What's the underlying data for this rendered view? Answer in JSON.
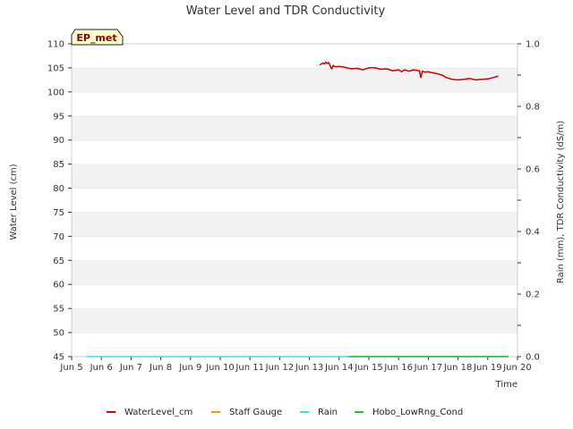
{
  "chart_data": {
    "type": "line",
    "title": "Water Level and TDR Conductivity",
    "site_label": "EP_met",
    "xlabel": "Time",
    "ylabel": "Water Level (cm)",
    "y2label": "Rain (mm), TDR Conductivity (dS/m)",
    "xlim": [
      5,
      20
    ],
    "ylim": [
      45,
      110
    ],
    "y2lim": [
      0.0,
      1.0
    ],
    "x_ticks": [
      5,
      6,
      7,
      8,
      9,
      10,
      11,
      12,
      13,
      14,
      15,
      16,
      17,
      18,
      19,
      20
    ],
    "x_tick_labels": [
      "Jun 5",
      "Jun 6",
      "Jun 7",
      "Jun 8",
      "Jun 9",
      "Jun 10",
      "Jun 11",
      "Jun 12",
      "Jun 13",
      "Jun 14",
      "Jun 15",
      "Jun 16",
      "Jun 17",
      "Jun 18",
      "Jun 19",
      "Jun 20"
    ],
    "y_ticks": [
      45,
      50,
      55,
      60,
      65,
      70,
      75,
      80,
      85,
      90,
      95,
      100,
      105,
      110
    ],
    "y2_ticks": [
      0.0,
      0.2,
      0.4,
      0.6,
      0.8,
      1.0
    ],
    "y2_tick_labels": [
      "0.0",
      "0.2",
      "0.4",
      "0.6",
      "0.8",
      "1.0"
    ],
    "series": [
      {
        "name": "WaterLevel_cm",
        "color": "#cc0000",
        "axis": "left",
        "x": [
          13.35,
          13.45,
          13.5,
          13.55,
          13.6,
          13.65,
          13.7,
          13.75,
          13.8,
          13.85,
          13.9,
          14.0,
          14.2,
          14.4,
          14.6,
          14.8,
          15.0,
          15.2,
          15.4,
          15.6,
          15.8,
          16.0,
          16.1,
          16.2,
          16.35,
          16.5,
          16.6,
          16.7,
          16.75,
          16.8,
          16.9,
          17.0,
          17.1,
          17.2,
          17.3,
          17.4,
          17.5,
          17.6,
          17.8,
          18.0,
          18.2,
          18.4,
          18.6,
          18.8,
          19.0,
          19.2,
          19.35
        ],
        "y": [
          105.6,
          106.0,
          105.8,
          106.2,
          105.9,
          106.1,
          105.4,
          104.8,
          105.5,
          105.3,
          105.2,
          105.3,
          105.1,
          104.8,
          104.9,
          104.6,
          105.0,
          105.0,
          104.7,
          104.8,
          104.4,
          104.6,
          104.2,
          104.6,
          104.3,
          104.6,
          104.5,
          104.4,
          103.0,
          104.3,
          104.1,
          104.2,
          104.0,
          103.9,
          103.8,
          103.6,
          103.4,
          103.0,
          102.6,
          102.5,
          102.6,
          102.8,
          102.5,
          102.6,
          102.7,
          103.0,
          103.3
        ]
      },
      {
        "name": "Staff Gauge",
        "color": "#ff9900",
        "axis": "left",
        "x": [],
        "y": []
      },
      {
        "name": "Rain",
        "color": "#33e0e6",
        "axis": "right",
        "x": [
          5.5,
          19.7
        ],
        "y": [
          0.0,
          0.0
        ]
      },
      {
        "name": "Hobo_LowRng_Cond",
        "color": "#22c422",
        "axis": "right",
        "x": [
          14.3,
          19.7
        ],
        "y": [
          0.0,
          0.0
        ]
      }
    ],
    "legend": [
      "WaterLevel_cm",
      "Staff Gauge",
      "Rain",
      "Hobo_LowRng_Cond"
    ],
    "legend_position": "bottom-center",
    "grid": true
  }
}
